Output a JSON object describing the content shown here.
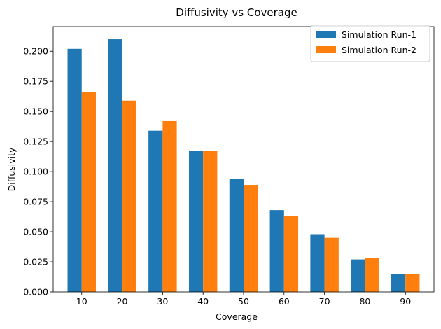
{
  "chart_data": {
    "type": "bar",
    "title": "Diffusivity vs Coverage",
    "xlabel": "Coverage",
    "ylabel": "Diffusivity",
    "categories": [
      "10",
      "20",
      "30",
      "40",
      "50",
      "60",
      "70",
      "80",
      "90"
    ],
    "series": [
      {
        "name": "Simulation Run-1",
        "color": "#1f77b4",
        "values": [
          0.202,
          0.21,
          0.134,
          0.117,
          0.094,
          0.068,
          0.048,
          0.027,
          0.015
        ]
      },
      {
        "name": "Simulation Run-2",
        "color": "#ff7f0e",
        "values": [
          0.166,
          0.159,
          0.142,
          0.117,
          0.089,
          0.063,
          0.045,
          0.028,
          0.015
        ]
      }
    ],
    "ylim": [
      0,
      0.2205
    ],
    "yticks": [
      "0.000",
      "0.025",
      "0.050",
      "0.075",
      "0.100",
      "0.125",
      "0.150",
      "0.175",
      "0.200"
    ],
    "grid": false,
    "legend_position": "top-right"
  }
}
